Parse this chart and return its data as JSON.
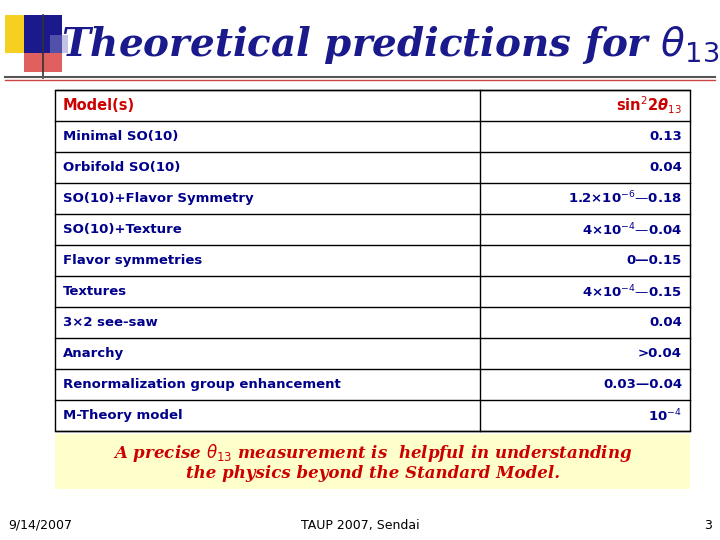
{
  "title": "Theoretical predictions for $\\theta_{13}$",
  "title_color": "#1a1a8c",
  "bg_color": "#ffffff",
  "table_header": [
    "Model(s)",
    "sin$^{2}$2$\\boldsymbol{\\theta}_{13}$"
  ],
  "table_rows": [
    [
      "Minimal SO(10)",
      "0.13"
    ],
    [
      "Orbifold SO(10)",
      "0.04"
    ],
    [
      "SO(10)+Flavor Symmetry",
      "1.2×10$^{-6}$—0.18"
    ],
    [
      "SO(10)+Texture",
      "4×10$^{-4}$—0.04"
    ],
    [
      "Flavor symmetries",
      "0—0.15"
    ],
    [
      "Textures",
      "4×10$^{-4}$—0.15"
    ],
    [
      "3×2 see-saw",
      "0.04"
    ],
    [
      "Anarchy",
      ">0.04"
    ],
    [
      "Renormalization group enhancement",
      "0.03—0.04"
    ],
    [
      "M-Theory model",
      "10$^{-4}$"
    ]
  ],
  "header_text_color": "#cc0000",
  "header_value_color": "#cc0000",
  "row_text_color": "#00008b",
  "footer_text_line1": "A precise $\\theta_{13}$ measurement is  helpful in understanding",
  "footer_text_line2": "the physics beyond the Standard Model.",
  "footer_color": "#cc0000",
  "footer_bg": "#ffffcc",
  "bottom_left": "9/14/2007",
  "bottom_center": "TAUP 2007, Sendai",
  "bottom_right": "3",
  "bottom_color": "#000000",
  "table_border_color": "#000000",
  "row_bg": "#ffffff",
  "header_bg": "#ffffff",
  "deco_yellow": "#f5d020",
  "deco_red": "#e06060",
  "deco_blue": "#1a1a8c",
  "line_color1": "#555555",
  "line_color2": "#cc4444"
}
